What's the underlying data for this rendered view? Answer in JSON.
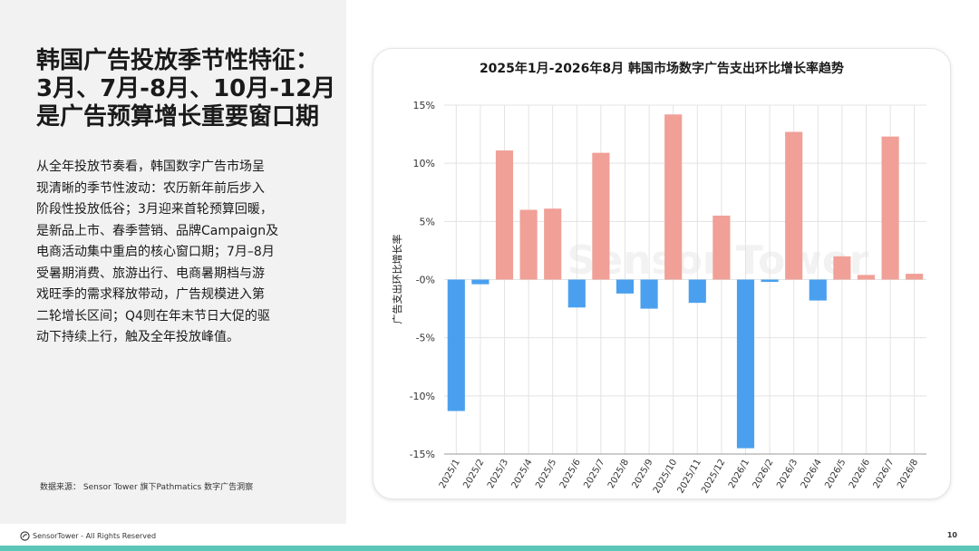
{
  "left": {
    "title_lines": [
      "韩国广告投放季节性特征：",
      "3月、7月-8月、10月-12月",
      "是广告预算增长重要窗口期"
    ],
    "body_lines": [
      "从全年投放节奏看，韩国数字广告市场呈",
      "现清晰的季节性波动：农历新年前后步入",
      "阶段性投放低谷；3月迎来首轮预算回暖，",
      "是新品上市、春季营销、品牌Campaign及",
      "电商活动集中重启的核心窗口期；7月–8月",
      "受暑期消费、旅游出行、电商暑期档与游",
      "戏旺季的需求释放带动，广告规模进入第",
      "二轮增长区间；Q4则在年末节日大促的驱",
      "动下持续上行，触及全年投放峰值。"
    ],
    "source": "数据来源： Sensor Tower  旗下Pathmatics 数字广告洞察"
  },
  "footer": {
    "logo_text": "SensorTower - All Rights Reserved",
    "page_number": "10"
  },
  "colors": {
    "positive": "#f0a097",
    "negative": "#4aa0ee",
    "accent_bar": "#5cc6b8",
    "grid": "#e3e3e3"
  },
  "chart_data": {
    "type": "bar",
    "title": "2025年1月-2026年8月 韩国市场数字广告支出环比增长率趋势",
    "ylabel": "广告支出环比增长率",
    "xlabel": "",
    "ylim": [
      -15,
      15
    ],
    "yticks": [
      -15,
      -10,
      -5,
      0,
      5,
      10,
      15
    ],
    "ytick_labels": [
      "-15%",
      "-10%",
      "-5%",
      "-0%",
      "5%",
      "10%",
      "15%"
    ],
    "grid": true,
    "watermark": "Sensor Tower",
    "categories": [
      "2025/1",
      "2025/2",
      "2025/3",
      "2025/4",
      "2025/5",
      "2025/6",
      "2025/7",
      "2025/8",
      "2025/9",
      "2025/10",
      "2025/11",
      "2025/12",
      "2026/1",
      "2026/2",
      "2026/3",
      "2026/4",
      "2026/5",
      "2026/6",
      "2026/7",
      "2026/8"
    ],
    "values": [
      -11.3,
      -0.4,
      11.1,
      6.0,
      6.1,
      -2.4,
      10.9,
      -1.2,
      -2.5,
      14.2,
      -2.0,
      5.5,
      -14.5,
      -0.2,
      12.7,
      -1.8,
      2.0,
      0.4,
      12.3,
      0.5
    ]
  }
}
